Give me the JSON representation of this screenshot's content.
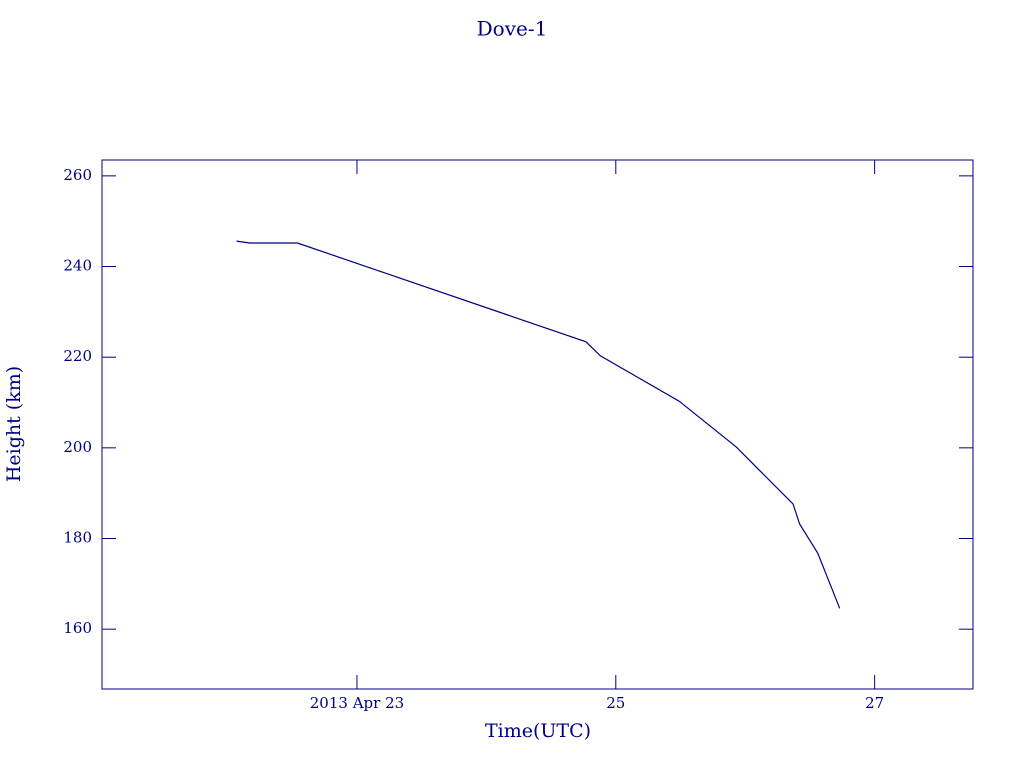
{
  "chart_data": {
    "type": "line",
    "title": "Dove-1",
    "x_label": "Time(UTC)",
    "y_label": "Height (km)",
    "x": [
      22.07,
      22.17,
      22.54,
      24.77,
      24.88,
      25.49,
      25.93,
      26.37,
      26.42,
      26.56,
      26.73
    ],
    "series": [
      {
        "name": "Dove-1",
        "color": "#000080",
        "values": [
          245.6,
          245.2,
          245.2,
          223.4,
          220.3,
          210.3,
          200.2,
          187.6,
          183.2,
          176.8,
          164.6
        ]
      }
    ],
    "xlim": [
      21.03,
      27.76
    ],
    "xticks": [
      {
        "value": 23,
        "label": "2013 Apr 23"
      },
      25,
      27
    ],
    "ylim": [
      146.8,
      263.5
    ],
    "yticks": [
      160,
      180,
      200,
      220,
      240,
      260
    ],
    "axis_color": "#000080"
  }
}
